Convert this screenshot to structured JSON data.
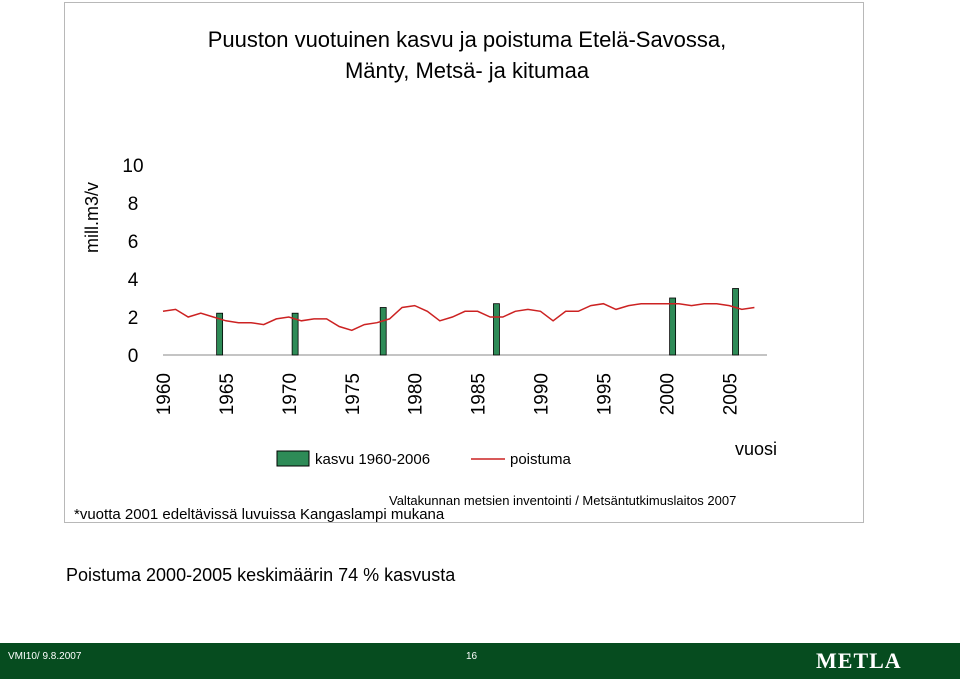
{
  "chart_data": {
    "type": "bar",
    "title": [
      "Puuston vuotuinen kasvu ja poistuma Etelä-Savossa,",
      "Mänty, Metsä- ja kitumaa"
    ],
    "ylabel": "mill.m3/v",
    "xlabel": "vuosi",
    "ylim": [
      0,
      10
    ],
    "yticks": [
      "0",
      "2",
      "4",
      "6",
      "8",
      "10"
    ],
    "xlim": [
      1960,
      2008
    ],
    "xticks": [
      "1960",
      "1965",
      "1970",
      "1975",
      "1980",
      "1985",
      "1990",
      "1995",
      "2000",
      "2005"
    ],
    "series": [
      {
        "name": "kasvu 1960-2006",
        "kind": "bar",
        "color": "#2e8b57",
        "x": [
          1964.5,
          1970.5,
          1977.5,
          1986.5,
          2000.5,
          2005.5
        ],
        "values": [
          2.2,
          2.2,
          2.5,
          2.7,
          3.0,
          3.5
        ]
      },
      {
        "name": "poistuma",
        "kind": "line",
        "color": "#cc2222",
        "x": [
          1960,
          1961,
          1962,
          1963,
          1964,
          1965,
          1966,
          1967,
          1968,
          1969,
          1970,
          1971,
          1972,
          1973,
          1974,
          1975,
          1976,
          1977,
          1978,
          1979,
          1980,
          1981,
          1982,
          1983,
          1984,
          1985,
          1986,
          1987,
          1988,
          1989,
          1990,
          1991,
          1992,
          1993,
          1994,
          1995,
          1996,
          1997,
          1998,
          1999,
          2000,
          2001,
          2002,
          2003,
          2004,
          2005,
          2006,
          2007
        ],
        "values": [
          2.3,
          2.4,
          2.0,
          2.2,
          2.0,
          1.8,
          1.7,
          1.7,
          1.6,
          1.9,
          2.0,
          1.8,
          1.9,
          1.9,
          1.5,
          1.3,
          1.6,
          1.7,
          1.9,
          2.5,
          2.6,
          2.3,
          1.8,
          2.0,
          2.3,
          2.3,
          2.0,
          2.0,
          2.3,
          2.4,
          2.3,
          1.8,
          2.3,
          2.3,
          2.6,
          2.7,
          2.4,
          2.6,
          2.7,
          2.7,
          2.7,
          2.7,
          2.6,
          2.7,
          2.7,
          2.6,
          2.4,
          2.5
        ]
      }
    ],
    "legend_position": "bottom",
    "grid": false,
    "source": "Valtakunnan metsien inventointi / Metsäntutkimuslaitos 2007",
    "note": "*vuotta 2001 edeltävissä luvuissa Kangaslampi mukana"
  },
  "summary": "Poistuma 2000-2005 keskimäärin 74 % kasvusta",
  "footer": {
    "left": "VMI10/  9.8.2007",
    "page": "16",
    "logo": "METLA",
    "bg_color": "#064c1f"
  }
}
